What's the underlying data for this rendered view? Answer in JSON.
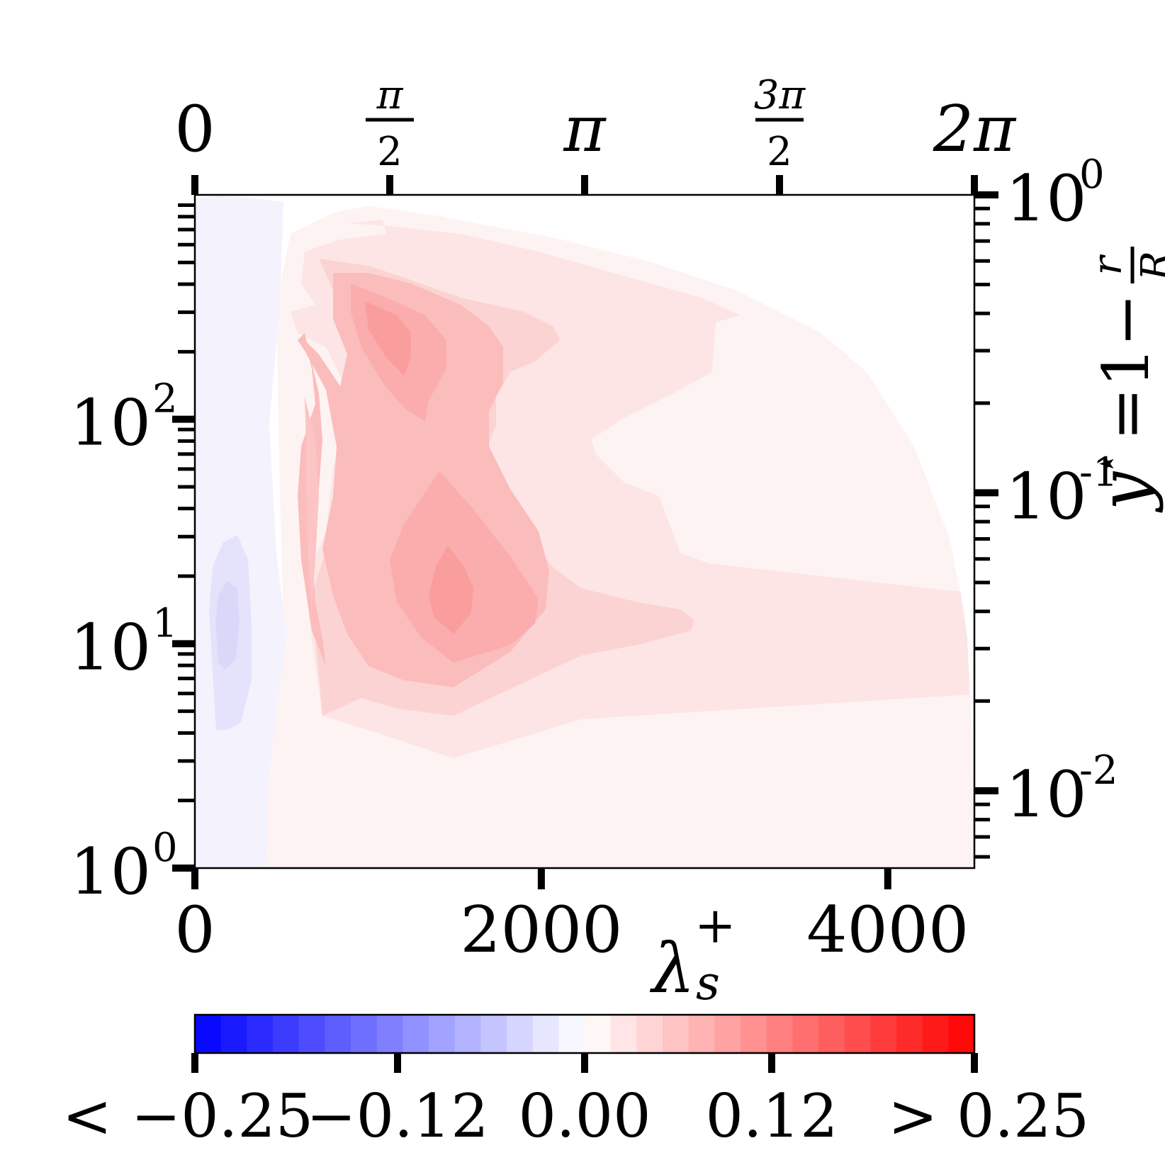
{
  "chart_data": {
    "type": "heatmap",
    "x_bottom": {
      "label_main": "λ",
      "label_sup": "+",
      "label_sub": "s",
      "lim": [
        0,
        4500
      ],
      "ticks": [
        0,
        2000,
        4000
      ],
      "tick_labels": [
        "0",
        "2000",
        "4000"
      ]
    },
    "x_top": {
      "lim": [
        0,
        6.2832
      ],
      "ticks": [
        0,
        1.5708,
        3.1416,
        4.7124,
        6.2832
      ],
      "tick_labels": [
        {
          "text": "0"
        },
        {
          "num": "π",
          "den": "2"
        },
        {
          "text": "π"
        },
        {
          "num": "3π",
          "den": "2"
        },
        {
          "text": "2π"
        }
      ]
    },
    "y_left": {
      "scale": "log",
      "lim": [
        1,
        1000
      ],
      "ticks": [
        1,
        10,
        100
      ],
      "tick_labels": [
        {
          "base": "10",
          "exp": "0"
        },
        {
          "base": "10",
          "exp": "1"
        },
        {
          "base": "10",
          "exp": "2"
        }
      ]
    },
    "y_right": {
      "scale": "log",
      "label": "y⋆ = 1 − r/R",
      "label_parts": {
        "y": "y",
        "star": "⋆",
        "eq": "=1−",
        "num": "r",
        "den": "R"
      },
      "lim": [
        0.0055,
        1
      ],
      "ticks": [
        1,
        0.1,
        0.01
      ],
      "tick_labels": [
        {
          "base": "10",
          "exp": "0"
        },
        {
          "base": "10",
          "exp": "-1"
        },
        {
          "base": "10",
          "exp": "-2"
        }
      ]
    },
    "colorbar": {
      "vmin": -0.25,
      "vmax": 0.25,
      "levels": 30,
      "colormap": "bwr",
      "tick_values": [
        -0.25,
        -0.12,
        0.0,
        0.12,
        0.25
      ],
      "tick_labels": [
        "< −0.25",
        "−0.12",
        "0.00",
        "0.12",
        "> 0.25"
      ]
    },
    "contours": [
      {
        "level": -0.02,
        "x_lambda": [
          0,
          400
        ],
        "y_range": [
          1,
          900
        ]
      },
      {
        "level": -0.03,
        "x_lambda": [
          70,
          300
        ],
        "y_range": [
          5,
          30
        ]
      },
      {
        "level": 0.02,
        "x_lambda": [
          400,
          4500
        ],
        "y_range": [
          1,
          900
        ]
      },
      {
        "level": 0.03,
        "x_lambda": [
          600,
          4500
        ],
        "y_range": [
          3.5,
          700
        ]
      },
      {
        "level": 0.05,
        "x_lambda": [
          650,
          2100
        ],
        "y_range": [
          5,
          450
        ]
      },
      {
        "level": 0.07,
        "x_lambda": [
          900,
          1600
        ],
        "y_range": [
          6.5,
          300
        ]
      },
      {
        "level": 0.09,
        "x_lambda": [
          1150,
          1600
        ],
        "y_range": [
          10,
          200
        ]
      }
    ]
  }
}
